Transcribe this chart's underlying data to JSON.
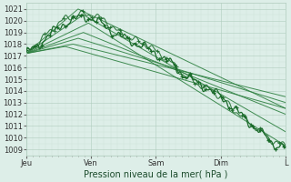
{
  "xlabel": "Pression niveau de la mer( hPa )",
  "xlim": [
    0,
    100
  ],
  "ylim": [
    1008.5,
    1021.5
  ],
  "yticks": [
    1009,
    1010,
    1011,
    1012,
    1013,
    1014,
    1015,
    1016,
    1017,
    1018,
    1019,
    1020,
    1021
  ],
  "xtick_positions": [
    0,
    25,
    50,
    75,
    100
  ],
  "xtick_labels": [
    "Jeu",
    "Ven",
    "Sam",
    "Dim",
    "L"
  ],
  "bg_color": "#ddeee8",
  "grid_color_major": "#b0ccbe",
  "grid_color_minor": "#c8e0d4",
  "line_color": "#1a6b2a",
  "line_color_straight": "#2d8040",
  "xlabel_color": "#1a4a2a",
  "xlabel_fontsize": 7.0,
  "tick_fontsize": 6.0
}
